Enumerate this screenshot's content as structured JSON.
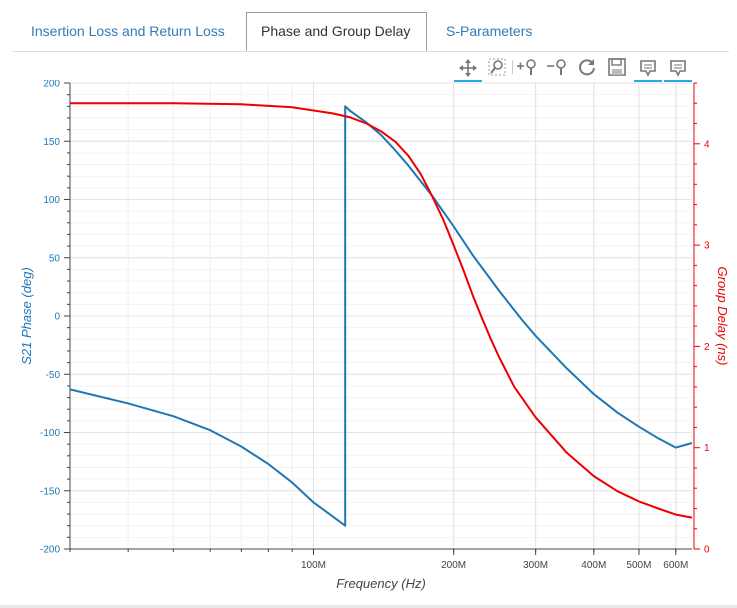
{
  "tabs": [
    {
      "label": "Insertion Loss and Return Loss",
      "active": false
    },
    {
      "label": "Phase and Group Delay",
      "active": true
    },
    {
      "label": "S-Parameters",
      "active": false
    }
  ],
  "toolbar": [
    {
      "icon": "pan-icon",
      "active": true
    },
    {
      "icon": "box-zoom-icon",
      "active": false
    },
    {
      "icon": "zoom-in-icon",
      "active": false
    },
    {
      "icon": "zoom-out-icon",
      "active": false
    },
    {
      "icon": "reset-icon",
      "active": false
    },
    {
      "icon": "save-icon",
      "active": false
    },
    {
      "icon": "hover-tooltip-icon",
      "active": true
    },
    {
      "icon": "hover-tooltip-icon",
      "active": true
    }
  ],
  "colors": {
    "phase": "#1f77b4",
    "group_delay": "#ee0000",
    "axis_left": "#1f77b4",
    "axis_right": "#ee0000"
  },
  "chart_data": {
    "type": "line",
    "xlabel": "Frequency (Hz)",
    "ylabel_left": "S21 Phase (deg)",
    "ylabel_right": "Group Delay (ns)",
    "xscale": "log",
    "xlim": [
      30000000,
      650000000
    ],
    "ylim_left": [
      -200,
      200
    ],
    "ylim_right": [
      0,
      4.6
    ],
    "x_ticks": [
      {
        "value": 100000000,
        "label": "100M"
      },
      {
        "value": 200000000,
        "label": "200M"
      },
      {
        "value": 300000000,
        "label": "300M"
      },
      {
        "value": 400000000,
        "label": "400M"
      },
      {
        "value": 500000000,
        "label": "500M"
      },
      {
        "value": 600000000,
        "label": "600M"
      }
    ],
    "y_left_ticks": [
      -200,
      -150,
      -100,
      -50,
      0,
      50,
      100,
      150,
      200
    ],
    "y_right_ticks": [
      0,
      1,
      2,
      3,
      4
    ],
    "grid": true,
    "series": [
      {
        "axis": "left",
        "x": [
          30000000,
          40000000,
          50000000,
          60000000,
          70000000,
          80000000,
          90000000,
          100000000,
          110000000,
          117000000,
          117000000,
          120000000,
          130000000,
          140000000,
          150000000,
          160000000,
          180000000,
          200000000,
          220000000,
          250000000,
          280000000,
          300000000,
          350000000,
          400000000,
          450000000,
          500000000,
          550000000,
          600000000,
          650000000
        ],
        "y": [
          -63,
          -75,
          -86,
          -98,
          -112,
          -127,
          -143,
          -160,
          -172,
          -180,
          180,
          176,
          166,
          155,
          142,
          129,
          103,
          77,
          52,
          22,
          -3,
          -17,
          -45,
          -67,
          -83,
          -95,
          -105,
          -113,
          -109
        ]
      },
      {
        "axis": "right",
        "x": [
          30000000,
          50000000,
          70000000,
          90000000,
          110000000,
          120000000,
          130000000,
          140000000,
          150000000,
          160000000,
          170000000,
          180000000,
          190000000,
          200000000,
          210000000,
          220000000,
          230000000,
          240000000,
          250000000,
          270000000,
          300000000,
          350000000,
          400000000,
          450000000,
          500000000,
          550000000,
          600000000,
          650000000
        ],
        "y": [
          4.4,
          4.4,
          4.39,
          4.36,
          4.3,
          4.26,
          4.2,
          4.12,
          4.02,
          3.88,
          3.7,
          3.48,
          3.25,
          3.0,
          2.75,
          2.5,
          2.28,
          2.08,
          1.9,
          1.6,
          1.3,
          0.95,
          0.72,
          0.57,
          0.47,
          0.4,
          0.34,
          0.31
        ]
      }
    ]
  }
}
